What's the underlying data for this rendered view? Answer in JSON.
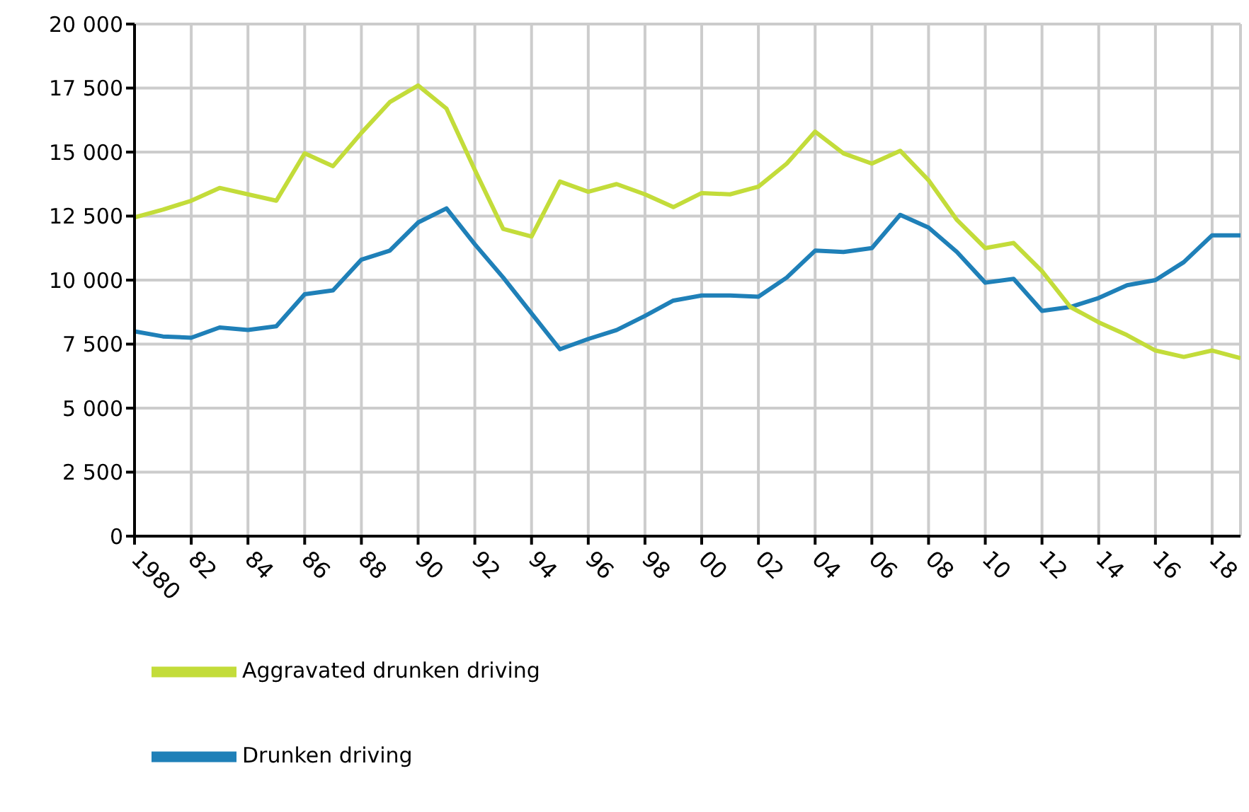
{
  "chart_data": {
    "type": "line",
    "x": [
      1980,
      1981,
      1982,
      1983,
      1984,
      1985,
      1986,
      1987,
      1988,
      1989,
      1990,
      1991,
      1992,
      1993,
      1994,
      1995,
      1996,
      1997,
      1998,
      1999,
      2000,
      2001,
      2002,
      2003,
      2004,
      2005,
      2006,
      2007,
      2008,
      2009,
      2010,
      2011,
      2012,
      2013,
      2014,
      2015,
      2016,
      2017,
      2018,
      2019
    ],
    "series": [
      {
        "name": "Drunken driving",
        "color": "#1f80b8",
        "values": [
          8000,
          7800,
          7750,
          8150,
          8050,
          8200,
          9450,
          9600,
          10800,
          11150,
          12250,
          12800,
          11400,
          10100,
          8700,
          7300,
          7700,
          8050,
          8600,
          9200,
          9400,
          9400,
          9350,
          10100,
          11150,
          11100,
          11250,
          12550,
          12050,
          11100,
          9900,
          10050,
          8800,
          8950,
          9300,
          9800,
          10000,
          10700,
          11750,
          11750
        ]
      },
      {
        "name": "Aggravated drunken driving",
        "color": "#c3dc3a",
        "values": [
          12450,
          12750,
          13100,
          13600,
          13350,
          13100,
          14950,
          14450,
          15750,
          16950,
          17600,
          16700,
          14300,
          12000,
          11700,
          13850,
          13450,
          13750,
          13350,
          12850,
          13400,
          13350,
          13650,
          14550,
          15800,
          14950,
          14550,
          15050,
          13900,
          12350,
          11250,
          11450,
          10350,
          8950,
          8350,
          7850,
          7250,
          7000,
          7250,
          6950
        ]
      }
    ],
    "xlim": [
      1980,
      2019
    ],
    "xticks": [
      {
        "value": 1980,
        "label": "1980"
      },
      {
        "value": 1982,
        "label": "82"
      },
      {
        "value": 1984,
        "label": "84"
      },
      {
        "value": 1986,
        "label": "86"
      },
      {
        "value": 1988,
        "label": "88"
      },
      {
        "value": 1990,
        "label": "90"
      },
      {
        "value": 1992,
        "label": "92"
      },
      {
        "value": 1994,
        "label": "94"
      },
      {
        "value": 1996,
        "label": "96"
      },
      {
        "value": 1998,
        "label": "98"
      },
      {
        "value": 2000,
        "label": "00"
      },
      {
        "value": 2002,
        "label": "02"
      },
      {
        "value": 2004,
        "label": "04"
      },
      {
        "value": 2006,
        "label": "06"
      },
      {
        "value": 2008,
        "label": "08"
      },
      {
        "value": 2010,
        "label": "10"
      },
      {
        "value": 2012,
        "label": "12"
      },
      {
        "value": 2014,
        "label": "14"
      },
      {
        "value": 2016,
        "label": "16"
      },
      {
        "value": 2018,
        "label": "18"
      }
    ],
    "ylim": [
      0,
      20000
    ],
    "yticks": [
      0,
      {
        "value": 2500,
        "label": "2 500"
      },
      {
        "value": 5000,
        "label": "5 000"
      },
      {
        "value": 7500,
        "label": "7 500"
      },
      {
        "value": 10000,
        "label": "10 000"
      },
      {
        "value": 12500,
        "label": "12 500"
      },
      {
        "value": 15000,
        "label": "15 000"
      },
      {
        "value": 17500,
        "label": "17 500"
      },
      {
        "value": 20000,
        "label": "20 000"
      }
    ],
    "grid": true,
    "legend": "bottom left",
    "marker": "none",
    "line_style": "solid"
  }
}
